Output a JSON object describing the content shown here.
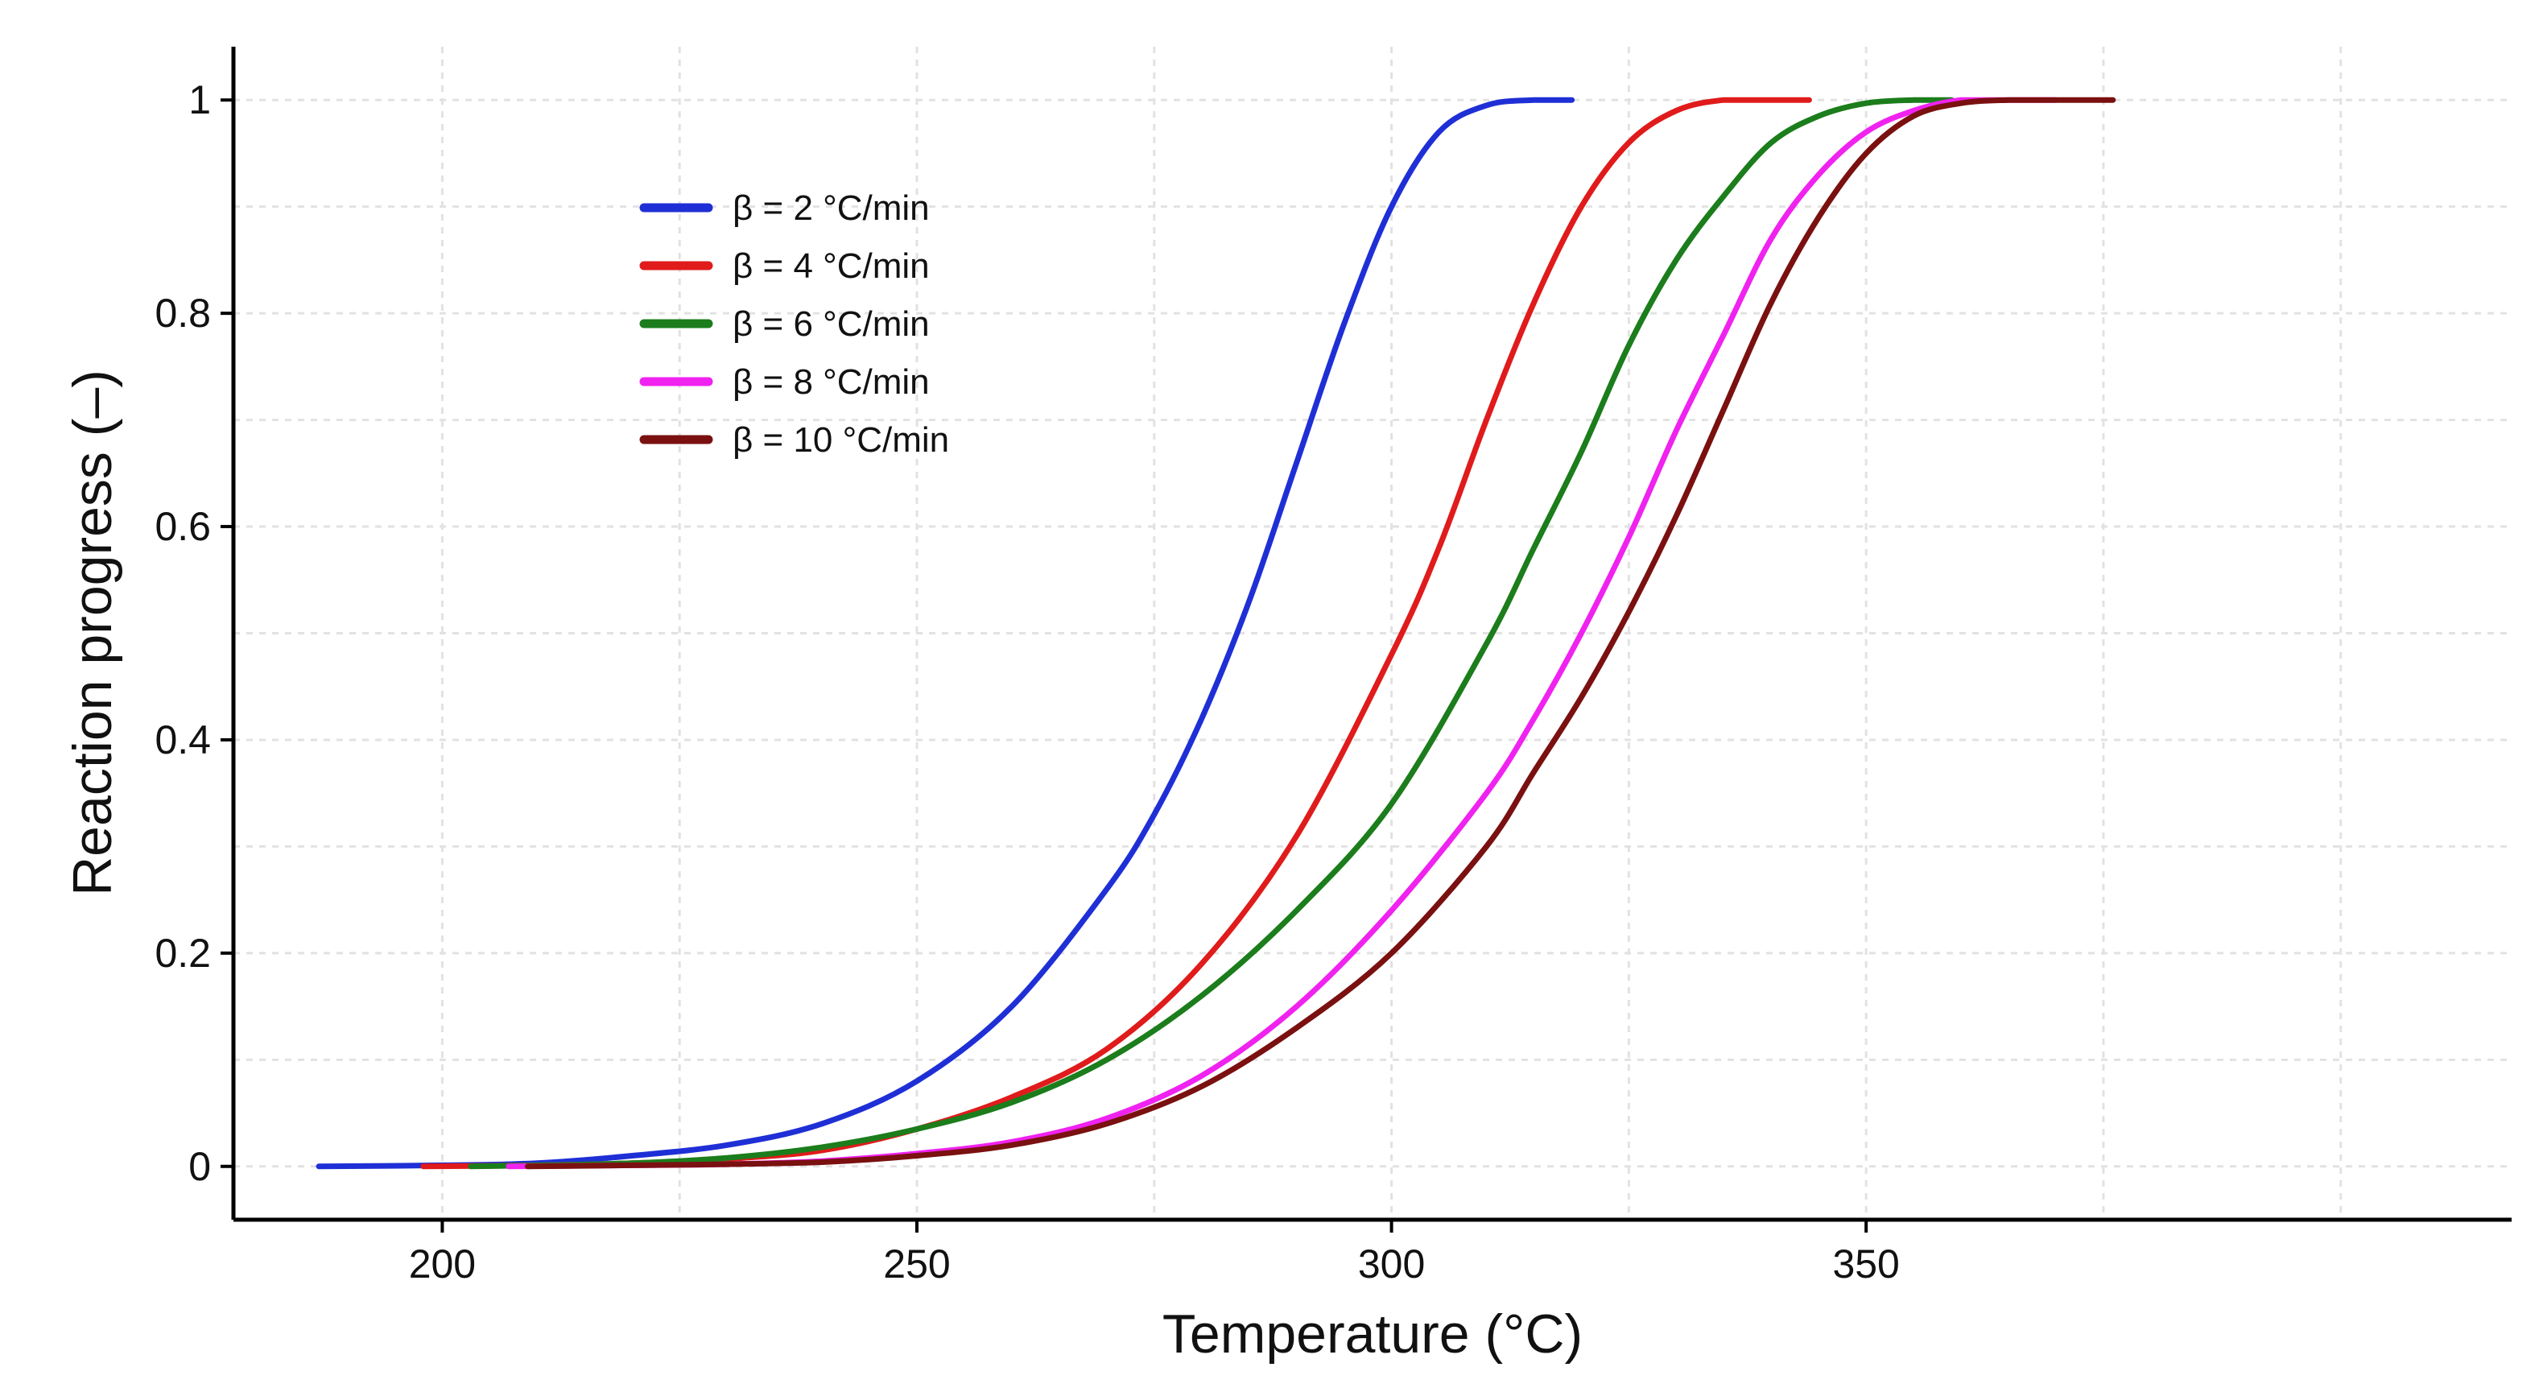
{
  "chart_data": {
    "type": "line",
    "title": "",
    "xlabel": "Temperature (°C)",
    "ylabel": "Reaction progress (–)",
    "xlim": [
      178,
      418
    ],
    "ylim": [
      -0.05,
      1.05
    ],
    "xticks": [
      200,
      250,
      300,
      350
    ],
    "yticks": [
      0,
      0.2,
      0.4,
      0.6,
      0.8,
      1
    ],
    "xtick_labels": [
      "200",
      "250",
      "300",
      "350"
    ],
    "ytick_labels": [
      "0",
      "0.2",
      "0.4",
      "0.6",
      "0.8",
      "1"
    ],
    "grid": true,
    "legend_position": "top-left",
    "series": [
      {
        "name": "β = 2 °C/min",
        "color": "#1f2fd6",
        "x": [
          187,
          200,
          210,
          220,
          230,
          240,
          250,
          260,
          270,
          275,
          280,
          285,
          290,
          295,
          300,
          305,
          310,
          315,
          319
        ],
        "y": [
          0,
          0.001,
          0.003,
          0.01,
          0.02,
          0.04,
          0.08,
          0.15,
          0.26,
          0.33,
          0.42,
          0.53,
          0.66,
          0.79,
          0.9,
          0.97,
          0.995,
          1.0,
          1.0
        ]
      },
      {
        "name": "β = 4 °C/min",
        "color": "#e01b1b",
        "x": [
          198,
          210,
          220,
          230,
          240,
          250,
          260,
          270,
          280,
          290,
          300,
          305,
          310,
          315,
          320,
          325,
          330,
          335,
          340,
          344
        ],
        "y": [
          0,
          0.001,
          0.003,
          0.007,
          0.015,
          0.035,
          0.065,
          0.11,
          0.19,
          0.31,
          0.48,
          0.58,
          0.7,
          0.81,
          0.9,
          0.96,
          0.99,
          1.0,
          1.0,
          1.0
        ]
      },
      {
        "name": "β = 6 °C/min",
        "color": "#1b7d1b",
        "x": [
          203,
          210,
          220,
          230,
          240,
          250,
          260,
          270,
          280,
          290,
          300,
          310,
          315,
          320,
          325,
          330,
          335,
          340,
          345,
          350,
          355,
          359
        ],
        "y": [
          0,
          0.001,
          0.003,
          0.008,
          0.018,
          0.035,
          0.06,
          0.1,
          0.16,
          0.24,
          0.34,
          0.49,
          0.58,
          0.67,
          0.77,
          0.85,
          0.91,
          0.96,
          0.985,
          0.997,
          1.0,
          1.0
        ]
      },
      {
        "name": "β = 8 °C/min",
        "color": "#f022f0",
        "x": [
          207,
          220,
          230,
          240,
          250,
          260,
          270,
          280,
          290,
          300,
          310,
          315,
          320,
          325,
          330,
          335,
          340,
          345,
          350,
          355,
          360,
          365,
          370
        ],
        "y": [
          0,
          0.001,
          0.002,
          0.005,
          0.012,
          0.023,
          0.045,
          0.085,
          0.15,
          0.24,
          0.35,
          0.42,
          0.5,
          0.59,
          0.69,
          0.78,
          0.87,
          0.93,
          0.97,
          0.99,
          1.0,
          1.0,
          1.0
        ]
      },
      {
        "name": "β = 10 °C/min",
        "color": "#7a1010",
        "x": [
          209,
          220,
          230,
          240,
          250,
          260,
          270,
          280,
          290,
          300,
          310,
          315,
          320,
          325,
          330,
          335,
          340,
          345,
          350,
          355,
          360,
          365,
          370,
          376
        ],
        "y": [
          0,
          0.001,
          0.002,
          0.004,
          0.01,
          0.02,
          0.04,
          0.075,
          0.13,
          0.2,
          0.3,
          0.37,
          0.44,
          0.52,
          0.61,
          0.71,
          0.81,
          0.89,
          0.95,
          0.985,
          0.997,
          1.0,
          1.0,
          1.0
        ]
      }
    ]
  }
}
